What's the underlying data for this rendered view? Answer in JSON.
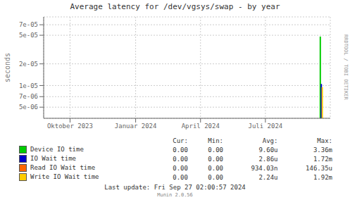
{
  "chart_data": {
    "type": "line",
    "title": "Average latency for /dev/vgsys/swap - by year",
    "y_label": "seconds",
    "log": "y",
    "grid": true,
    "xlim": [
      1692921600,
      1727654400
    ],
    "xticks": [
      {
        "value": 1696118400,
        "label": "Oktober 2023"
      },
      {
        "value": 1704067200,
        "label": "Januar 2024"
      },
      {
        "value": 1711929600,
        "label": "April 2024"
      },
      {
        "value": 1719792000,
        "label": "Juli 2024"
      }
    ],
    "ylim": [
      3.5e-06,
      9e-05
    ],
    "yticks": [
      {
        "value": 5e-06,
        "label": "5e-06"
      },
      {
        "value": 7e-06,
        "label": "7e-06"
      },
      {
        "value": 1e-05,
        "label": "1e-05"
      },
      {
        "value": 2e-05,
        "label": "2e-05"
      },
      {
        "value": 5e-05,
        "label": "5e-05"
      },
      {
        "value": 7e-05,
        "label": "7e-05"
      }
    ],
    "legend_columns": [
      "Cur:",
      "Min:",
      "Avg:",
      "Max:"
    ],
    "series": [
      {
        "name": "Device IO time",
        "color": "#00cc00",
        "x": [
          1726444800,
          1726444800
        ],
        "values": [
          3.5e-06,
          4.8e-05
        ],
        "legend_values": [
          "0.00",
          "0.00",
          "9.60u",
          "3.36m"
        ]
      },
      {
        "name": "IO Wait time",
        "color": "#0000cc",
        "x": [
          1726564800,
          1726564800
        ],
        "values": [
          3.5e-06,
          1.05e-05
        ],
        "legend_values": [
          "0.00",
          "0.00",
          "2.86u",
          "1.72m"
        ]
      },
      {
        "name": "Read IO Wait time",
        "color": "#ff6600",
        "x": [],
        "values": [],
        "legend_values": [
          "0.00",
          "0.00",
          "934.03n",
          "146.35u"
        ]
      },
      {
        "name": "Write IO Wait time",
        "color": "#ffcc00",
        "x": [
          1726684800,
          1726684800
        ],
        "values": [
          3.5e-06,
          9.5e-06
        ],
        "legend_values": [
          "0.00",
          "0.00",
          "2.24u",
          "1.92m"
        ]
      }
    ],
    "annotations": [
      "Last update: Fri Sep 27 02:00:57 2024",
      "Munin 2.0.56",
      "RRDTOOL / TOBI OETIKER"
    ]
  }
}
